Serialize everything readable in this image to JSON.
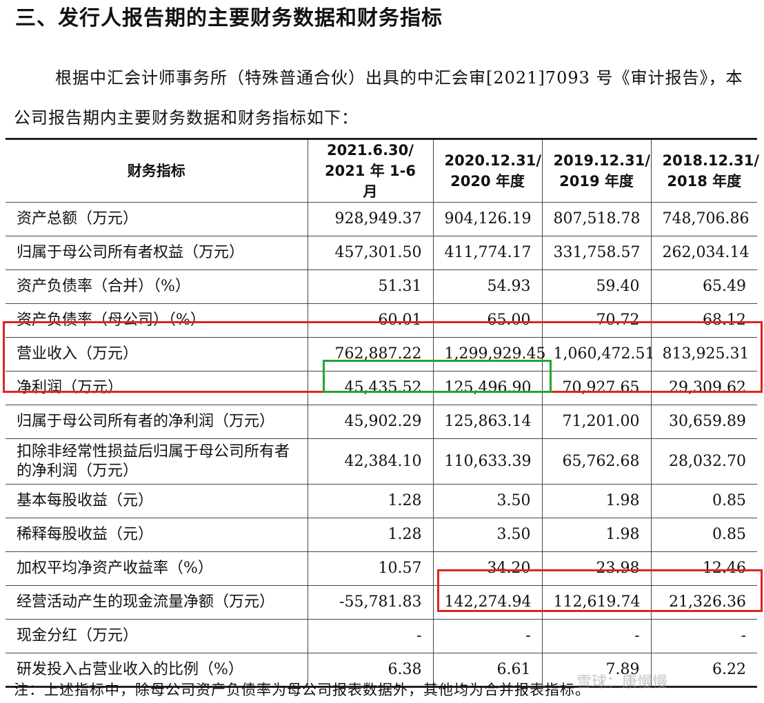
{
  "heading": "三、发行人报告期的主要财务数据和财务指标",
  "intro": "根据中汇会计师事务所（特殊普通合伙）出具的中汇会审[2021]7093 号《审计报告》，本公司报告期内主要财务数据和财务指标如下：",
  "table": {
    "header": {
      "metric": "财务指标",
      "columns": [
        {
          "line1": "2021.6.30/",
          "line2": "2021 年 1-6 月"
        },
        {
          "line1": "2020.12.31/",
          "line2": "2020 年度"
        },
        {
          "line1": "2019.12.31/",
          "line2": "2019 年度"
        },
        {
          "line1": "2018.12.31/",
          "line2": "2018 年度"
        }
      ]
    },
    "rows": [
      {
        "label": "资产总额（万元）",
        "values": [
          "928,949.37",
          "904,126.19",
          "807,518.78",
          "748,706.86"
        ]
      },
      {
        "label": "归属于母公司所有者权益（万元）",
        "values": [
          "457,301.50",
          "411,774.17",
          "331,758.57",
          "262,034.14"
        ]
      },
      {
        "label": "资产负债率（合并）（%）",
        "values": [
          "51.31",
          "54.93",
          "59.40",
          "65.49"
        ]
      },
      {
        "label": "资产负债率（母公司）（%）",
        "values": [
          "60.01",
          "65.00",
          "70.72",
          "68.12"
        ]
      },
      {
        "label": "营业收入（万元）",
        "values": [
          "762,887.22",
          "1,299,929.45",
          "1,060,472.51",
          "813,925.31"
        ]
      },
      {
        "label": "净利润（万元）",
        "values": [
          "45,435.52",
          "125,496.90",
          "70,927.65",
          "29,309.62"
        ]
      },
      {
        "label": "归属于母公司所有者的净利润（万元）",
        "values": [
          "45,902.29",
          "125,863.14",
          "71,201.00",
          "30,659.89"
        ]
      },
      {
        "label": "扣除非经常性损益后归属于母公司所有者的净利润（万元）",
        "values": [
          "42,384.10",
          "110,633.39",
          "65,762.68",
          "28,032.70"
        ]
      },
      {
        "label": "基本每股收益（元）",
        "values": [
          "1.28",
          "3.50",
          "1.98",
          "0.85"
        ]
      },
      {
        "label": "稀释每股收益（元）",
        "values": [
          "1.28",
          "3.50",
          "1.98",
          "0.85"
        ]
      },
      {
        "label": "加权平均净资产收益率（%）",
        "values": [
          "10.57",
          "34.20",
          "23.98",
          "12.46"
        ]
      },
      {
        "label": "经营活动产生的现金流量净额（万元）",
        "values": [
          "-55,781.83",
          "142,274.94",
          "112,619.74",
          "21,326.36"
        ]
      },
      {
        "label": "现金分红（万元）",
        "values": [
          "-",
          "-",
          "-",
          "-"
        ]
      },
      {
        "label": "研发投入占营业收入的比例（%）",
        "values": [
          "6.38",
          "6.61",
          "7.89",
          "6.22"
        ]
      }
    ]
  },
  "note": "注：上述指标中，除母公司资产负债率为母公司报表数据外，其他均为合并报表指标。",
  "watermark": "雪球：康慢慢",
  "highlight_colors": {
    "red": "#e0231f",
    "green": "#1fa532"
  }
}
